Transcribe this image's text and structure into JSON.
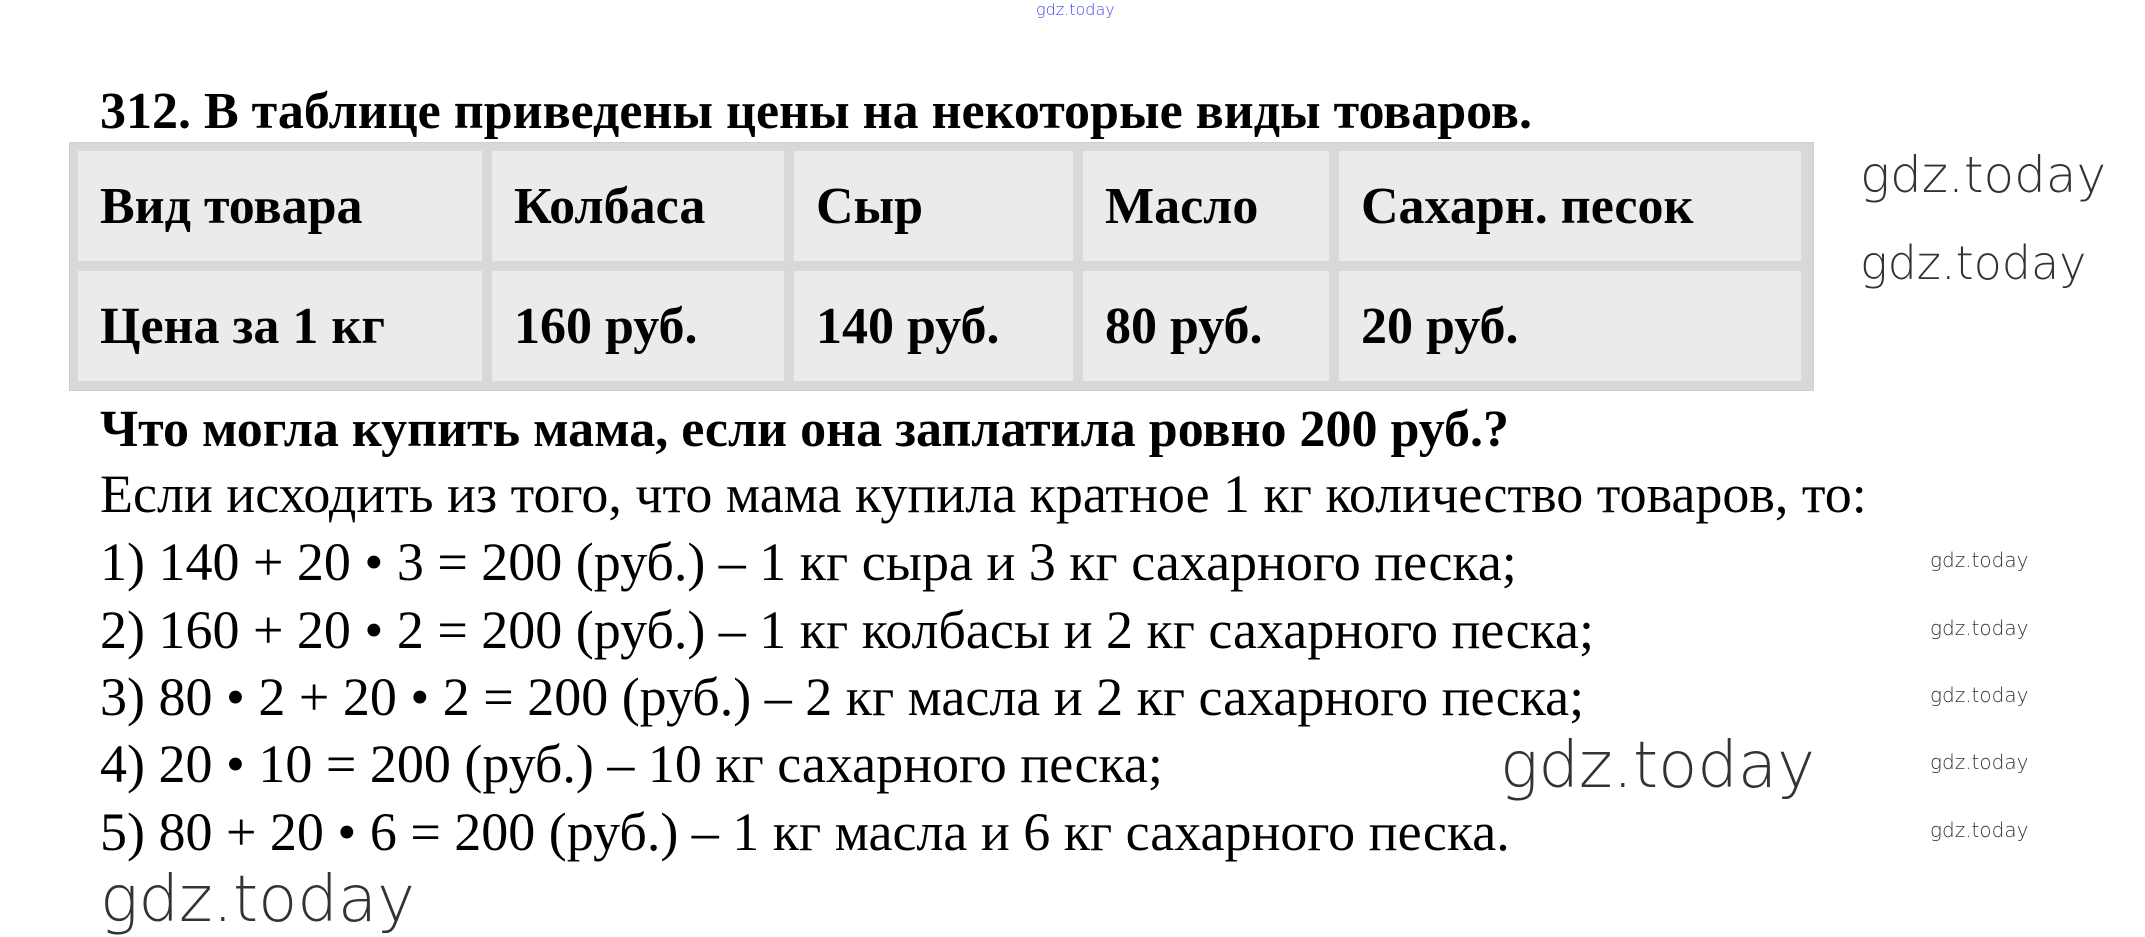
{
  "watermark": "gdz.today",
  "title": "312. В таблице приведены цены на некоторые виды товаров.",
  "table": {
    "header": [
      "Вид товара",
      "Колбаса",
      "Сыр",
      "Масло",
      "Сахарн. песок"
    ],
    "row": [
      "Цена за 1 кг",
      "160 руб.",
      "140 руб.",
      "80 руб.",
      "20 руб."
    ]
  },
  "question": "Что могла купить мама, если она заплатила ровно 200 руб.?",
  "solution": {
    "intro": "Если исходить из того, что мама купила кратное 1 кг количество товаров, то:",
    "items": [
      "1) 140 + 20 • 3 = 200 (руб.) – 1 кг сыра и 3 кг сахарного песка;",
      "2) 160 + 20 • 2 = 200 (руб.) – 1 кг колбасы и 2 кг сахарного песка;",
      "3) 80 • 2 + 20 • 2 = 200 (руб.) – 2 кг масла и 2 кг сахарного песка;",
      "4) 20 • 10 = 200 (руб.) – 10 кг сахарного песка;",
      "5) 80 + 20 • 6 = 200 (руб.) – 1 кг масла и 6 кг сахарного песка."
    ]
  }
}
